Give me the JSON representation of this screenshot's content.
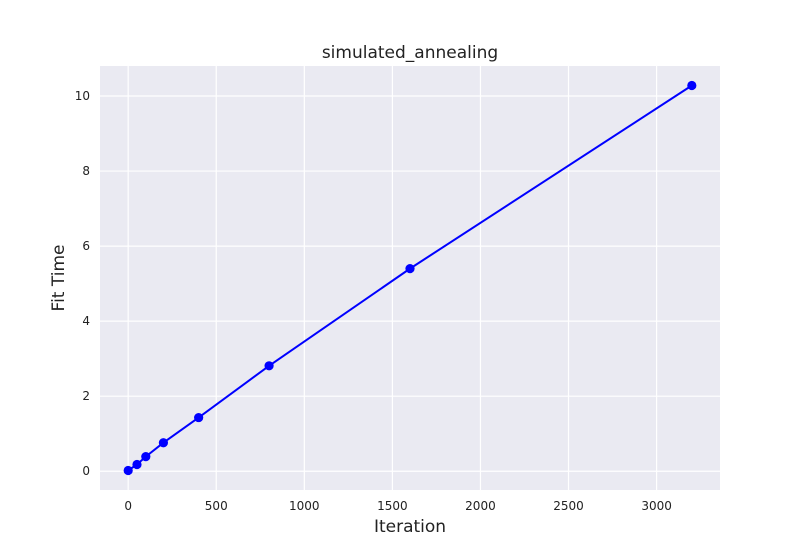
{
  "chart_data": {
    "type": "line",
    "title": "simulated_annealing",
    "xlabel": "Iteration",
    "ylabel": "Fit Time",
    "x": [
      0,
      50,
      100,
      200,
      400,
      800,
      1600,
      3200
    ],
    "series": [
      {
        "values": [
          0.02,
          0.18,
          0.39,
          0.76,
          1.43,
          2.81,
          5.4,
          10.28
        ]
      }
    ],
    "xlim": [
      -160,
      3360
    ],
    "ylim": [
      -0.5,
      10.8
    ],
    "xticks": [
      0,
      500,
      1000,
      1500,
      2000,
      2500,
      3000
    ],
    "yticks": [
      0,
      2,
      4,
      6,
      8,
      10
    ],
    "grid": true,
    "colors": {
      "background": "#eaeaf2",
      "grid": "#ffffff",
      "series": "#0000ff"
    }
  }
}
